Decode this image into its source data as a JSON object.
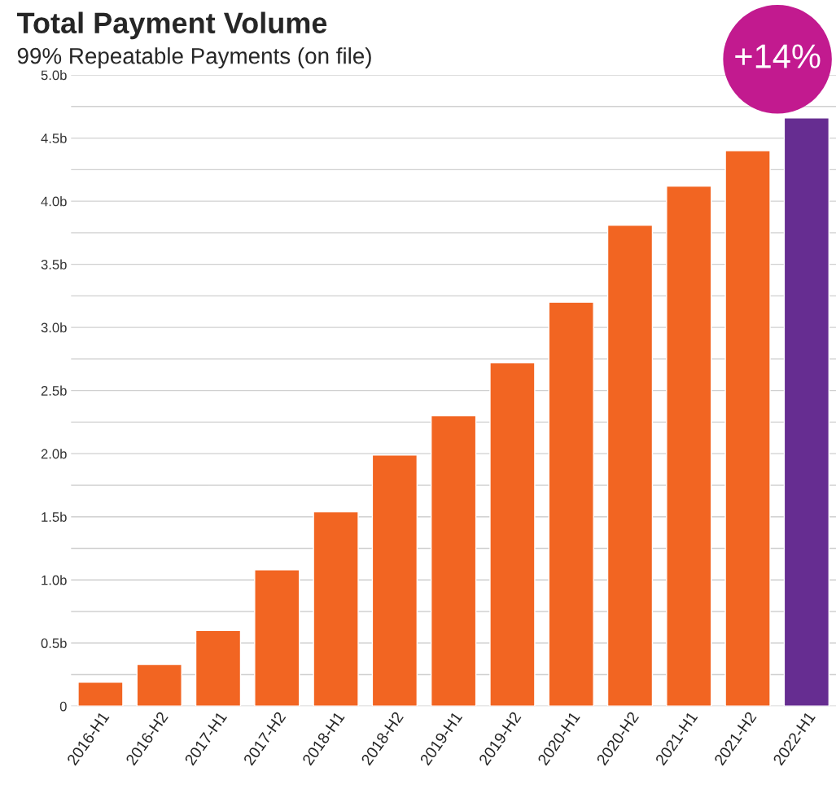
{
  "chart_data": {
    "type": "bar",
    "title": "Total Payment Volume",
    "subtitle": "99% Repeatable Payments (on file)",
    "categories": [
      "2016-H1",
      "2016-H2",
      "2017-H1",
      "2017-H2",
      "2018-H1",
      "2018-H2",
      "2019-H1",
      "2019-H2",
      "2020-H1",
      "2020-H2",
      "2021-H1",
      "2021-H2",
      "2022-H1"
    ],
    "values": [
      0.19,
      0.33,
      0.6,
      1.08,
      1.54,
      1.99,
      2.3,
      2.72,
      3.2,
      3.81,
      4.12,
      4.4,
      4.66
    ],
    "colors": [
      "#f26522",
      "#f26522",
      "#f26522",
      "#f26522",
      "#f26522",
      "#f26522",
      "#f26522",
      "#f26522",
      "#f26522",
      "#f26522",
      "#f26522",
      "#f26522",
      "#662d91"
    ],
    "ylim": [
      0,
      5
    ],
    "yticks": [
      {
        "value": 0,
        "label": "0"
      },
      {
        "value": 0.25,
        "label": null
      },
      {
        "value": 0.5,
        "label": "0.5b"
      },
      {
        "value": 0.75,
        "label": null
      },
      {
        "value": 1,
        "label": "1.0b"
      },
      {
        "value": 1.25,
        "label": null
      },
      {
        "value": 1.5,
        "label": "1.5b"
      },
      {
        "value": 1.75,
        "label": null
      },
      {
        "value": 2,
        "label": "2.0b"
      },
      {
        "value": 2.25,
        "label": null
      },
      {
        "value": 2.5,
        "label": "2.5b"
      },
      {
        "value": 2.75,
        "label": null
      },
      {
        "value": 3,
        "label": "3.0b"
      },
      {
        "value": 3.25,
        "label": null
      },
      {
        "value": 3.5,
        "label": "3.5b"
      },
      {
        "value": 3.75,
        "label": null
      },
      {
        "value": 4,
        "label": "4.0b"
      },
      {
        "value": 4.25,
        "label": null
      },
      {
        "value": 4.5,
        "label": "4.5b"
      },
      {
        "value": 4.75,
        "label": null
      },
      {
        "value": 5,
        "label": "5.0b"
      }
    ],
    "grid": "y",
    "annotations": [
      "+14%"
    ]
  }
}
